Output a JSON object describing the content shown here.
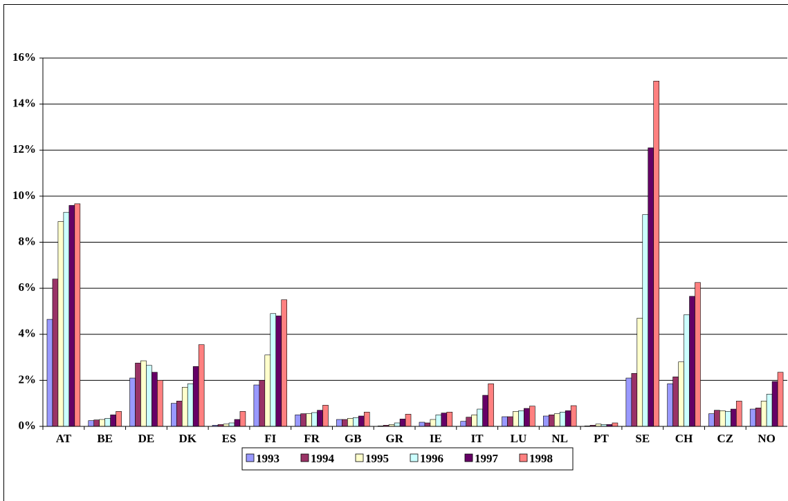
{
  "chart_data": {
    "type": "bar",
    "categories": [
      "AT",
      "BE",
      "DE",
      "DK",
      "ES",
      "FI",
      "FR",
      "GB",
      "GR",
      "IE",
      "IT",
      "LU",
      "NL",
      "PT",
      "SE",
      "CH",
      "CZ",
      "NO"
    ],
    "series": [
      {
        "name": "1993",
        "color": "#9999ff",
        "values": [
          4.65,
          0.25,
          2.1,
          1.0,
          0.05,
          1.8,
          0.5,
          0.3,
          0.02,
          0.18,
          0.22,
          0.42,
          0.45,
          0.02,
          2.1,
          1.85,
          0.55,
          0.75
        ]
      },
      {
        "name": "1994",
        "color": "#993366",
        "values": [
          6.4,
          0.28,
          2.75,
          1.1,
          0.08,
          2.0,
          0.55,
          0.3,
          0.05,
          0.15,
          0.4,
          0.42,
          0.5,
          0.05,
          2.3,
          2.15,
          0.7,
          0.8
        ]
      },
      {
        "name": "1995",
        "color": "#ffffcc",
        "values": [
          8.9,
          0.3,
          2.85,
          1.7,
          0.1,
          3.1,
          0.55,
          0.35,
          0.08,
          0.3,
          0.5,
          0.65,
          0.55,
          0.1,
          4.7,
          2.8,
          0.68,
          1.1
        ]
      },
      {
        "name": "1996",
        "color": "#ccffff",
        "values": [
          9.3,
          0.35,
          2.65,
          1.85,
          0.15,
          4.9,
          0.6,
          0.38,
          0.15,
          0.5,
          0.75,
          0.68,
          0.62,
          0.08,
          9.2,
          4.85,
          0.65,
          1.4
        ]
      },
      {
        "name": "1997",
        "color": "#660066",
        "values": [
          9.6,
          0.5,
          2.35,
          2.6,
          0.3,
          4.8,
          0.7,
          0.45,
          0.32,
          0.58,
          1.35,
          0.78,
          0.68,
          0.08,
          12.1,
          5.65,
          0.75,
          1.95
        ]
      },
      {
        "name": "1998",
        "color": "#ff8080",
        "values": [
          9.67,
          0.65,
          2.0,
          3.55,
          0.65,
          5.5,
          0.92,
          0.62,
          0.53,
          0.62,
          1.85,
          0.88,
          0.9,
          0.15,
          15.0,
          6.25,
          1.1,
          2.35
        ]
      }
    ],
    "ylim": [
      0,
      16
    ],
    "yticks": [
      {
        "value": 0,
        "label": "0%"
      },
      {
        "value": 2,
        "label": "2%"
      },
      {
        "value": 4,
        "label": "4%"
      },
      {
        "value": 6,
        "label": "6%"
      },
      {
        "value": 8,
        "label": "8%"
      },
      {
        "value": 10,
        "label": "10%"
      },
      {
        "value": 12,
        "label": "12%"
      },
      {
        "value": 14,
        "label": "14%"
      },
      {
        "value": 16,
        "label": "16%"
      }
    ],
    "grid": true,
    "legend": "bottom"
  }
}
